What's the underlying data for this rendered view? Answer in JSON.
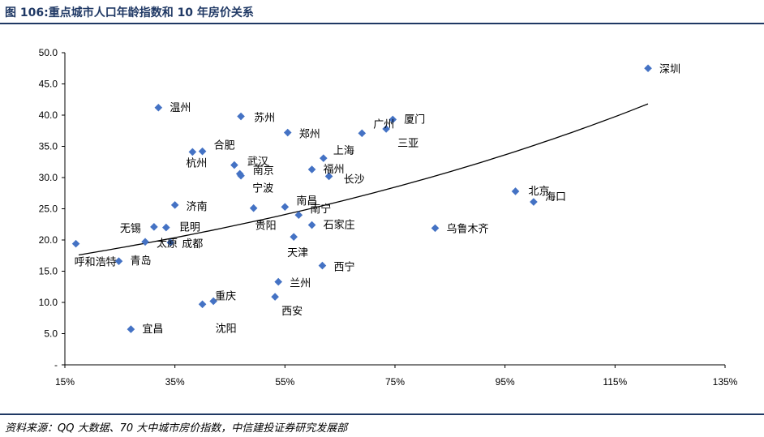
{
  "title": "图 106:重点城市人口年龄指数和 10 年房价关系",
  "source": "资料来源：QQ 大数据、70 大中城市房价指数，中信建投证券研究发展部",
  "colors": {
    "marker": "#4472c4",
    "heading": "#1f3864",
    "trend": "#000000"
  },
  "chart_data": {
    "type": "scatter",
    "title": "",
    "xlabel": "",
    "ylabel": "",
    "xlim": [
      0.15,
      1.35
    ],
    "ylim": [
      0,
      50
    ],
    "x_ticks": [
      0.15,
      0.35,
      0.55,
      0.75,
      0.95,
      1.15,
      1.35
    ],
    "x_tick_labels": [
      "15%",
      "35%",
      "55%",
      "75%",
      "95%",
      "115%",
      "135%"
    ],
    "y_ticks": [
      0,
      5,
      10,
      15,
      20,
      25,
      30,
      35,
      40,
      45,
      50
    ],
    "y_tick_labels": [
      "-",
      "5.0",
      "10.0",
      "15.0",
      "20.0",
      "25.0",
      "30.0",
      "35.0",
      "40.0",
      "45.0",
      "50.0"
    ],
    "grid": false,
    "legend": "none",
    "trendline": {
      "type": "exponential",
      "x_start": 0.175,
      "x_end": 1.21,
      "y_start": 17.6,
      "y_end": 41.8
    },
    "points": [
      {
        "label": "深圳",
        "x": 1.21,
        "y": 47.5
      },
      {
        "label": "温州",
        "x": 0.32,
        "y": 41.2
      },
      {
        "label": "苏州",
        "x": 0.47,
        "y": 39.8
      },
      {
        "label": "厦门",
        "x": 0.746,
        "y": 39.3
      },
      {
        "label": "郑州",
        "x": 0.555,
        "y": 37.2
      },
      {
        "label": "广州",
        "x": 0.69,
        "y": 37.1
      },
      {
        "label": "三亚",
        "x": 0.734,
        "y": 37.8
      },
      {
        "label": "合肥",
        "x": 0.4,
        "y": 34.2
      },
      {
        "label": "杭州",
        "x": 0.382,
        "y": 34.1
      },
      {
        "label": "上海",
        "x": 0.62,
        "y": 33.1
      },
      {
        "label": "武汉",
        "x": 0.458,
        "y": 32.0
      },
      {
        "label": "福州",
        "x": 0.599,
        "y": 31.3
      },
      {
        "label": "南京",
        "x": 0.468,
        "y": 30.6
      },
      {
        "label": "长沙",
        "x": 0.63,
        "y": 30.2
      },
      {
        "label": "宁波",
        "x": 0.47,
        "y": 30.3
      },
      {
        "label": "北京",
        "x": 0.969,
        "y": 27.8
      },
      {
        "label": "海口",
        "x": 1.002,
        "y": 26.1
      },
      {
        "label": "济南",
        "x": 0.35,
        "y": 25.6
      },
      {
        "label": "南昌",
        "x": 0.55,
        "y": 25.3
      },
      {
        "label": "贵阳",
        "x": 0.493,
        "y": 25.1
      },
      {
        "label": "南宁",
        "x": 0.575,
        "y": 24.0
      },
      {
        "label": "石家庄",
        "x": 0.599,
        "y": 22.4
      },
      {
        "label": "无锡",
        "x": 0.312,
        "y": 22.1
      },
      {
        "label": "昆明",
        "x": 0.334,
        "y": 22.0
      },
      {
        "label": "乌鲁木齐",
        "x": 0.823,
        "y": 21.9
      },
      {
        "label": "天津",
        "x": 0.566,
        "y": 20.5
      },
      {
        "label": "太原",
        "x": 0.296,
        "y": 19.7
      },
      {
        "label": "成都",
        "x": 0.342,
        "y": 19.6
      },
      {
        "label": "呼和浩特",
        "x": 0.17,
        "y": 19.4
      },
      {
        "label": "青岛",
        "x": 0.248,
        "y": 16.6
      },
      {
        "label": "西宁",
        "x": 0.618,
        "y": 15.9
      },
      {
        "label": "兰州",
        "x": 0.538,
        "y": 13.3
      },
      {
        "label": "西安",
        "x": 0.532,
        "y": 10.9
      },
      {
        "label": "重庆",
        "x": 0.42,
        "y": 10.2
      },
      {
        "label": "沈阳",
        "x": 0.4,
        "y": 9.7
      },
      {
        "label": "宜昌",
        "x": 0.27,
        "y": 5.7
      }
    ]
  }
}
